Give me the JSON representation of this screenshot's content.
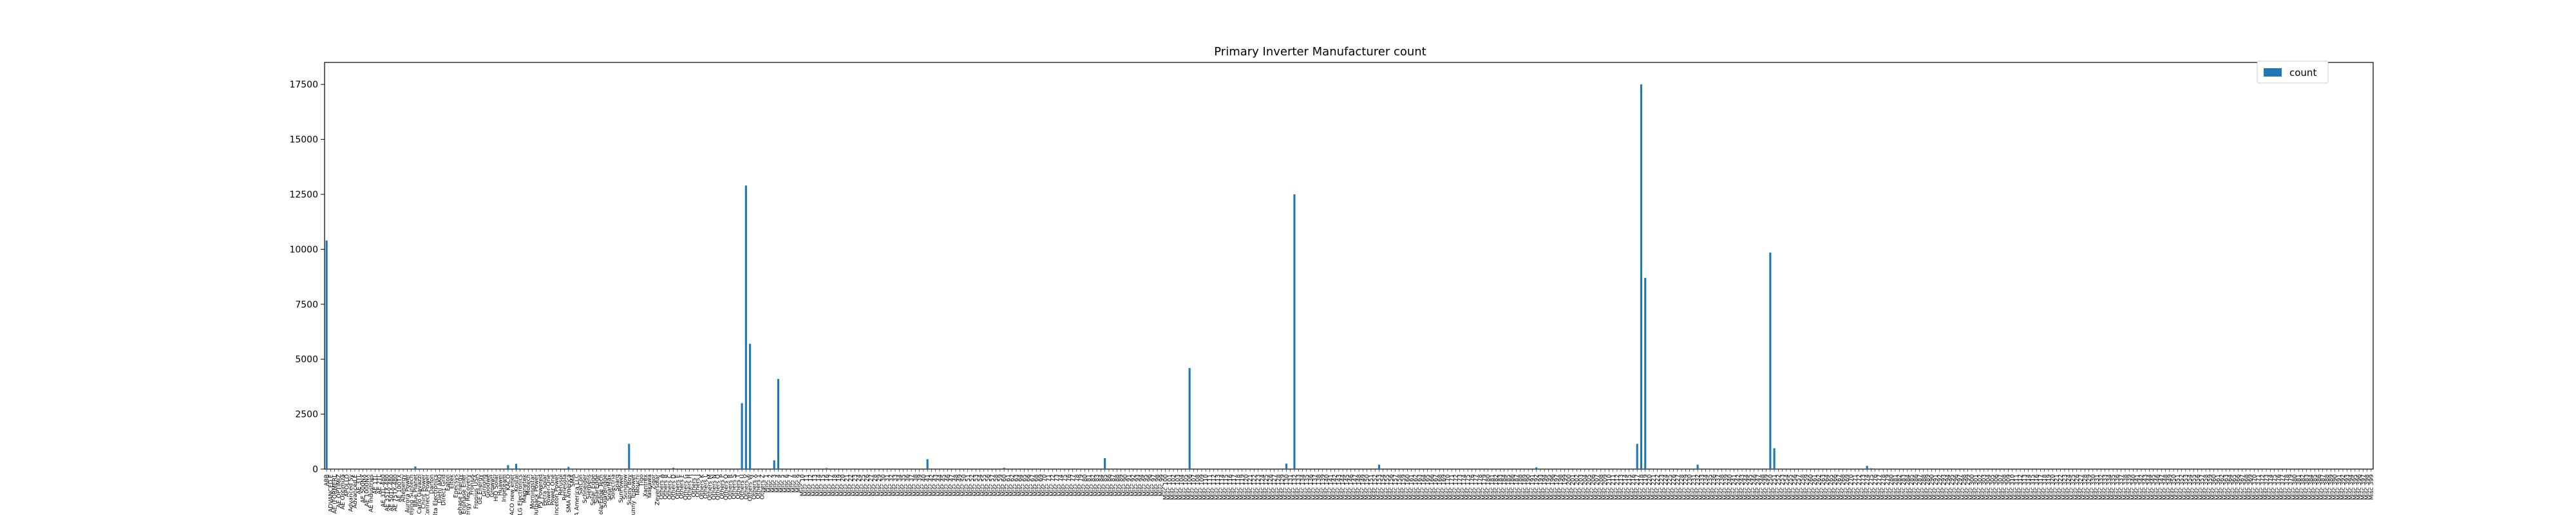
{
  "chart_data": {
    "type": "bar",
    "title": "Primary Inverter Manufacturer count",
    "xlabel": "",
    "ylabel": "",
    "ylim": [
      0,
      18500
    ],
    "yticks": [
      0,
      2500,
      5000,
      7500,
      10000,
      12500,
      15000,
      17500
    ],
    "ytick_labels": [
      "0",
      "2500",
      "5000",
      "7500",
      "10000",
      "12500",
      "15000",
      "17500"
    ],
    "legend": {
      "position": "top-right",
      "label": "count"
    },
    "grid": false,
    "categories": [
      "ABB",
      "ADVANCED E",
      "AE (FORMERL",
      "AE OPTIMIZ",
      "AE Optimiza",
      "APOLLO",
      "Advanced Sy",
      "Advanced E",
      "AE 3TL",
      "AE 500NX",
      "AE 1000NX",
      "AE Industries",
      "AE 1TL",
      "AE 2TL",
      "AE 3TL-480",
      "AE 35TX-480",
      "AE 50TX-480",
      "AE 75TX-480",
      "AE 100TX",
      "Altenergy",
      "Aurora Power",
      "Beijing Suntech",
      "Blue Planet",
      "Carlo Gavazzi",
      "Chint Power",
      "Connect Power",
      "Darfon",
      "Delta Electronics",
      "Diehl AKO",
      "Direct Grid",
      "Eaton",
      "Eltek",
      "Enecsys",
      "Enphase Energy",
      "Enphase Ener",
      "Energy Recovery",
      "Fronius",
      "Fronius USA",
      "GE Energy",
      "Ginlong",
      "Goodwe",
      "Growatt",
      "HiQ Solar",
      "Huawei",
      "Ingeteam",
      "KACO",
      "KACO new ener",
      "Kostal",
      "LG Electronics",
      "Magnetek",
      "Motech",
      "Morningstar",
      "Outback Power",
      "PV Powered",
      "Petra Solar",
      "Power-One",
      "Power One",
      "Princeton Power",
      "Refusol",
      "Renesola",
      "SMA America",
      "SMA",
      "SMA America LLC",
      "SatCon",
      "Schneider",
      "Siemens",
      "Solar Edge",
      "SolarEdge",
      "SolarEdge Tech",
      "SolarBridge",
      "SolarMax",
      "Solectria",
      "Sparq",
      "SunPower",
      "Sungrow",
      "Sunny Boy",
      "Sunny Tripower",
      "Tabuchi",
      "Tigo",
      "Xantrex",
      "Yaskawa",
      "Zigor",
      "Zeversolar",
      "Others A",
      "Others B",
      "Others C",
      "Others D",
      "Others E",
      "Others F",
      "Others G",
      "Others H",
      "Others I",
      "Others J",
      "Others K",
      "Others L",
      "Others M",
      "Others N",
      "Others O",
      "Others P",
      "Others Q",
      "Others R",
      "Others S",
      "Others T",
      "Others U",
      "Others V",
      "Others W",
      "Others X",
      "Others Y",
      "Others Z",
      "Misc 1",
      "Misc 2",
      "Misc 3",
      "Misc 4",
      "Misc 5",
      "Misc 6",
      "Misc 7",
      "Misc 8",
      "Misc 9",
      "Misc 10",
      "Misc 11",
      "Misc 12",
      "Misc 13",
      "Misc 14",
      "Misc 15",
      "Misc 16",
      "Misc 17",
      "Misc 18",
      "Misc 19",
      "Misc 20",
      "Misc 21",
      "Misc 22",
      "Misc 23",
      "Misc 24",
      "Misc 25",
      "Misc 26",
      "Misc 27",
      "Misc 28",
      "Misc 29",
      "Misc 30",
      "Misc 31",
      "Misc 32",
      "Misc 33",
      "Misc 34",
      "Misc 35",
      "Misc 36",
      "Misc 37",
      "Misc 38",
      "Misc 39",
      "Misc 40",
      "Misc 41",
      "Misc 42",
      "Misc 43",
      "Misc 44",
      "Misc 45",
      "Misc 46",
      "Misc 47",
      "Misc 48",
      "Misc 49",
      "Misc 50",
      "Misc 51",
      "Misc 52",
      "Misc 53",
      "Misc 54",
      "Misc 55",
      "Misc 56",
      "Misc 57",
      "Misc 58",
      "Misc 59",
      "Misc 60",
      "Misc 61",
      "Misc 62",
      "Misc 63",
      "Misc 64",
      "Misc 65",
      "Misc 66",
      "Misc 67",
      "Misc 68",
      "Misc 69",
      "Misc 70",
      "Misc 71",
      "Misc 72",
      "Misc 73",
      "Misc 74",
      "Misc 75",
      "Misc 76",
      "Misc 77",
      "Misc 78",
      "Misc 79",
      "Misc 80",
      "Misc 81",
      "Misc 82",
      "Misc 83",
      "Misc 84",
      "Misc 85",
      "Misc 86",
      "Misc 87",
      "Misc 88",
      "Misc 89",
      "Misc 90",
      "Misc 91",
      "Misc 92",
      "Misc 93",
      "Misc 94",
      "Misc 95",
      "Misc 96",
      "Misc 97",
      "Misc 98",
      "Misc 99",
      "Misc 100",
      "Misc 101",
      "Misc 102",
      "Misc 103",
      "Misc 104",
      "Misc 105",
      "Misc 106",
      "Misc 107",
      "Misc 108",
      "Misc 109",
      "Misc 110",
      "Misc 111",
      "Misc 112",
      "Misc 113",
      "Misc 114",
      "Misc 115",
      "Misc 116",
      "Misc 117",
      "Misc 118",
      "Misc 119",
      "Misc 120",
      "Misc 121",
      "Misc 122",
      "Misc 123",
      "Misc 124",
      "Misc 125",
      "Misc 126",
      "Misc 127",
      "Misc 128",
      "Misc 129",
      "Misc 130",
      "Misc 131",
      "Misc 132",
      "Misc 133",
      "Misc 134",
      "Misc 135",
      "Misc 136",
      "Misc 137",
      "Misc 138",
      "Misc 139",
      "Misc 140",
      "Misc 141",
      "Misc 142",
      "Misc 143",
      "Misc 144",
      "Misc 145",
      "Misc 146",
      "Misc 147",
      "Misc 148",
      "Misc 149",
      "Misc 150",
      "Misc 151",
      "Misc 152",
      "Misc 153",
      "Misc 154",
      "Misc 155",
      "Misc 156",
      "Misc 157",
      "Misc 158",
      "Misc 159",
      "Misc 160",
      "Misc 161",
      "Misc 162",
      "Misc 163",
      "Misc 164",
      "Misc 165",
      "Misc 166",
      "Misc 167",
      "Misc 168",
      "Misc 169",
      "Misc 170",
      "Misc 171",
      "Misc 172",
      "Misc 173",
      "Misc 174",
      "Misc 175",
      "Misc 176",
      "Misc 177",
      "Misc 178",
      "Misc 179",
      "Misc 180",
      "Misc 181",
      "Misc 182",
      "Misc 183",
      "Misc 184",
      "Misc 185",
      "Misc 186",
      "Misc 187",
      "Misc 188",
      "Misc 189",
      "Misc 190",
      "Misc 191",
      "Misc 192",
      "Misc 193",
      "Misc 194",
      "Misc 195",
      "Misc 196",
      "Misc 197",
      "Misc 198",
      "Misc 199",
      "Misc 200",
      "Misc 201",
      "Misc 202",
      "Misc 203",
      "Misc 204",
      "Misc 205",
      "Misc 206",
      "Misc 207",
      "Misc 208",
      "Misc 209",
      "Misc 210",
      "Misc 211",
      "Misc 212",
      "Misc 213",
      "Misc 214",
      "Misc 215",
      "Misc 216",
      "Misc 217",
      "Misc 218",
      "Misc 219",
      "Misc 220",
      "Misc 221",
      "Misc 222",
      "Misc 223",
      "Misc 224",
      "Misc 225",
      "Misc 226",
      "Misc 227",
      "Misc 228",
      "Misc 229",
      "Misc 230",
      "Misc 231",
      "Misc 232",
      "Misc 233",
      "Misc 234",
      "Misc 235",
      "Misc 236",
      "Misc 237",
      "Misc 238",
      "Misc 239",
      "Misc 240",
      "Misc 241",
      "Misc 242",
      "Misc 243",
      "Misc 244",
      "Misc 245",
      "Misc 246",
      "Misc 247",
      "Misc 248",
      "Misc 249",
      "Misc 250",
      "Misc 251",
      "Misc 252",
      "Misc 253",
      "Misc 254",
      "Misc 255",
      "Misc 256",
      "Misc 257",
      "Misc 258",
      "Misc 259",
      "Misc 260",
      "Misc 261",
      "Misc 262",
      "Misc 263",
      "Misc 264",
      "Misc 265",
      "Misc 266",
      "Misc 267",
      "Misc 268",
      "Misc 269",
      "Misc 270",
      "Misc 271",
      "Misc 272",
      "Misc 273",
      "Misc 274",
      "Misc 275",
      "Misc 276",
      "Misc 277",
      "Misc 278",
      "Misc 279",
      "Misc 280",
      "Misc 281",
      "Misc 282",
      "Misc 283",
      "Misc 284",
      "Misc 285",
      "Misc 286",
      "Misc 287",
      "Misc 288",
      "Misc 289",
      "Misc 290",
      "Misc 291",
      "Misc 292",
      "Misc 293",
      "Misc 294",
      "Misc 295",
      "Misc 296",
      "Misc 297",
      "Misc 298",
      "Misc 299",
      "Misc 300",
      "Misc 301",
      "Misc 302",
      "Misc 303",
      "Misc 304",
      "Misc 305",
      "Misc 306",
      "Misc 307",
      "Misc 308",
      "Misc 309",
      "Misc 310",
      "Misc 311",
      "Misc 312",
      "Misc 313",
      "Misc 314",
      "Misc 315",
      "Misc 316",
      "Misc 317",
      "Misc 318",
      "Misc 319",
      "Misc 320",
      "Misc 321",
      "Misc 322",
      "Misc 323",
      "Misc 324",
      "Misc 325",
      "Misc 326",
      "Misc 327",
      "Misc 328",
      "Misc 329",
      "Misc 330",
      "Misc 331",
      "Misc 332",
      "Misc 333",
      "Misc 334",
      "Misc 335",
      "Misc 336",
      "Misc 337",
      "Misc 338",
      "Misc 339",
      "Misc 340",
      "Misc 341",
      "Misc 342",
      "Misc 343",
      "Misc 344",
      "Misc 345",
      "Misc 346",
      "Misc 347",
      "Misc 348",
      "Misc 349",
      "Misc 350",
      "Misc 351",
      "Misc 352",
      "Misc 353",
      "Misc 354",
      "Misc 355",
      "Misc 356",
      "Misc 357",
      "Misc 358",
      "Misc 359",
      "Misc 360",
      "Misc 361",
      "Misc 362",
      "Misc 363",
      "Misc 364",
      "Misc 365",
      "Misc 366",
      "Misc 367",
      "Misc 368",
      "Misc 369",
      "Misc 370",
      "Misc 371",
      "Misc 372",
      "Misc 373",
      "Misc 374",
      "Misc 375",
      "Misc 376",
      "Misc 377",
      "Misc 378",
      "Misc 379",
      "Misc 380",
      "Misc 381",
      "Misc 382",
      "Misc 383",
      "Misc 384",
      "Misc 385",
      "Misc 386",
      "Misc 387",
      "Misc 388",
      "Misc 389",
      "Misc 390",
      "Misc 391",
      "Misc 392",
      "Misc 393",
      "Misc 394",
      "Misc 395",
      "Misc 396",
      "Misc 397",
      "Misc 398",
      "Misc 399"
    ],
    "bar_color": "#1f77b4",
    "values_sparse": {
      "0": 10400,
      "22": 120,
      "45": 180,
      "47": 240,
      "60": 100,
      "75": 1150,
      "86": 60,
      "103": 3000,
      "104": 12900,
      "105": 5700,
      "111": 400,
      "112": 4100,
      "124": 50,
      "149": 450,
      "168": 60,
      "193": 500,
      "214": 4600,
      "238": 250,
      "240": 12500,
      "261": 200,
      "300": 80,
      "325": 1150,
      "326": 17500,
      "327": 8700,
      "340": 200,
      "358": 9850,
      "359": 950,
      "382": 150,
      "383": 40
    },
    "count_total": 400
  }
}
